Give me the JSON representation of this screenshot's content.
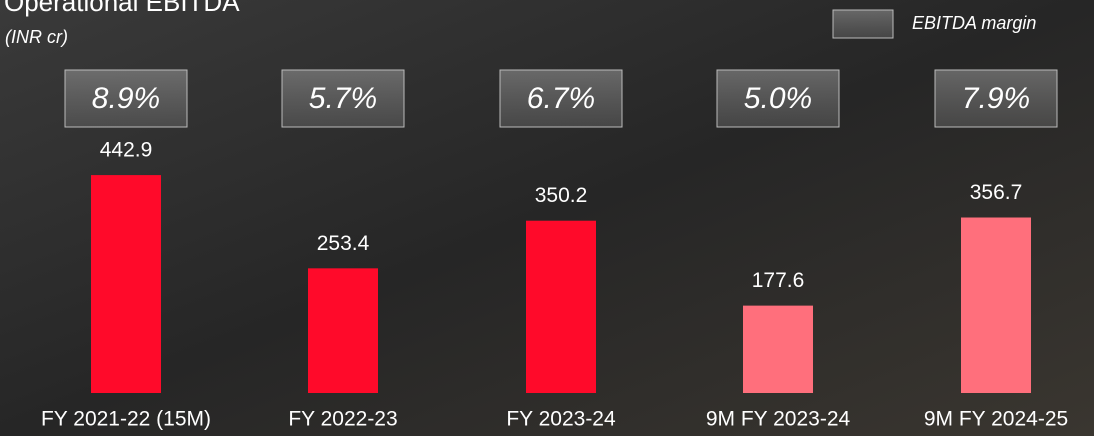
{
  "chart_data": {
    "type": "bar",
    "title": "Operational EBITDA",
    "subtitle": "(INR cr)",
    "categories": [
      "FY 2021-22 (15M)",
      "FY 2022-23",
      "FY 2023-24",
      "9M FY 2023-24",
      "9M FY 2024-25"
    ],
    "series": [
      {
        "name": "Operational EBITDA",
        "colors": [
          "#ff0a2a",
          "#ff0a2a",
          "#ff0a2a",
          "#ff6f7c",
          "#ff6f7c"
        ],
        "values": [
          442.9,
          253.4,
          350.2,
          177.6,
          356.7
        ]
      },
      {
        "name": "EBITDA margin",
        "color": "#8a8a8a",
        "values": [
          8.9,
          5.7,
          6.7,
          5.0,
          7.9
        ],
        "value_labels": [
          "8.9%",
          "5.7%",
          "6.7%",
          "5.0%",
          "7.9%"
        ]
      }
    ],
    "ylim": [
      0,
      500
    ],
    "legend": "top-right"
  }
}
